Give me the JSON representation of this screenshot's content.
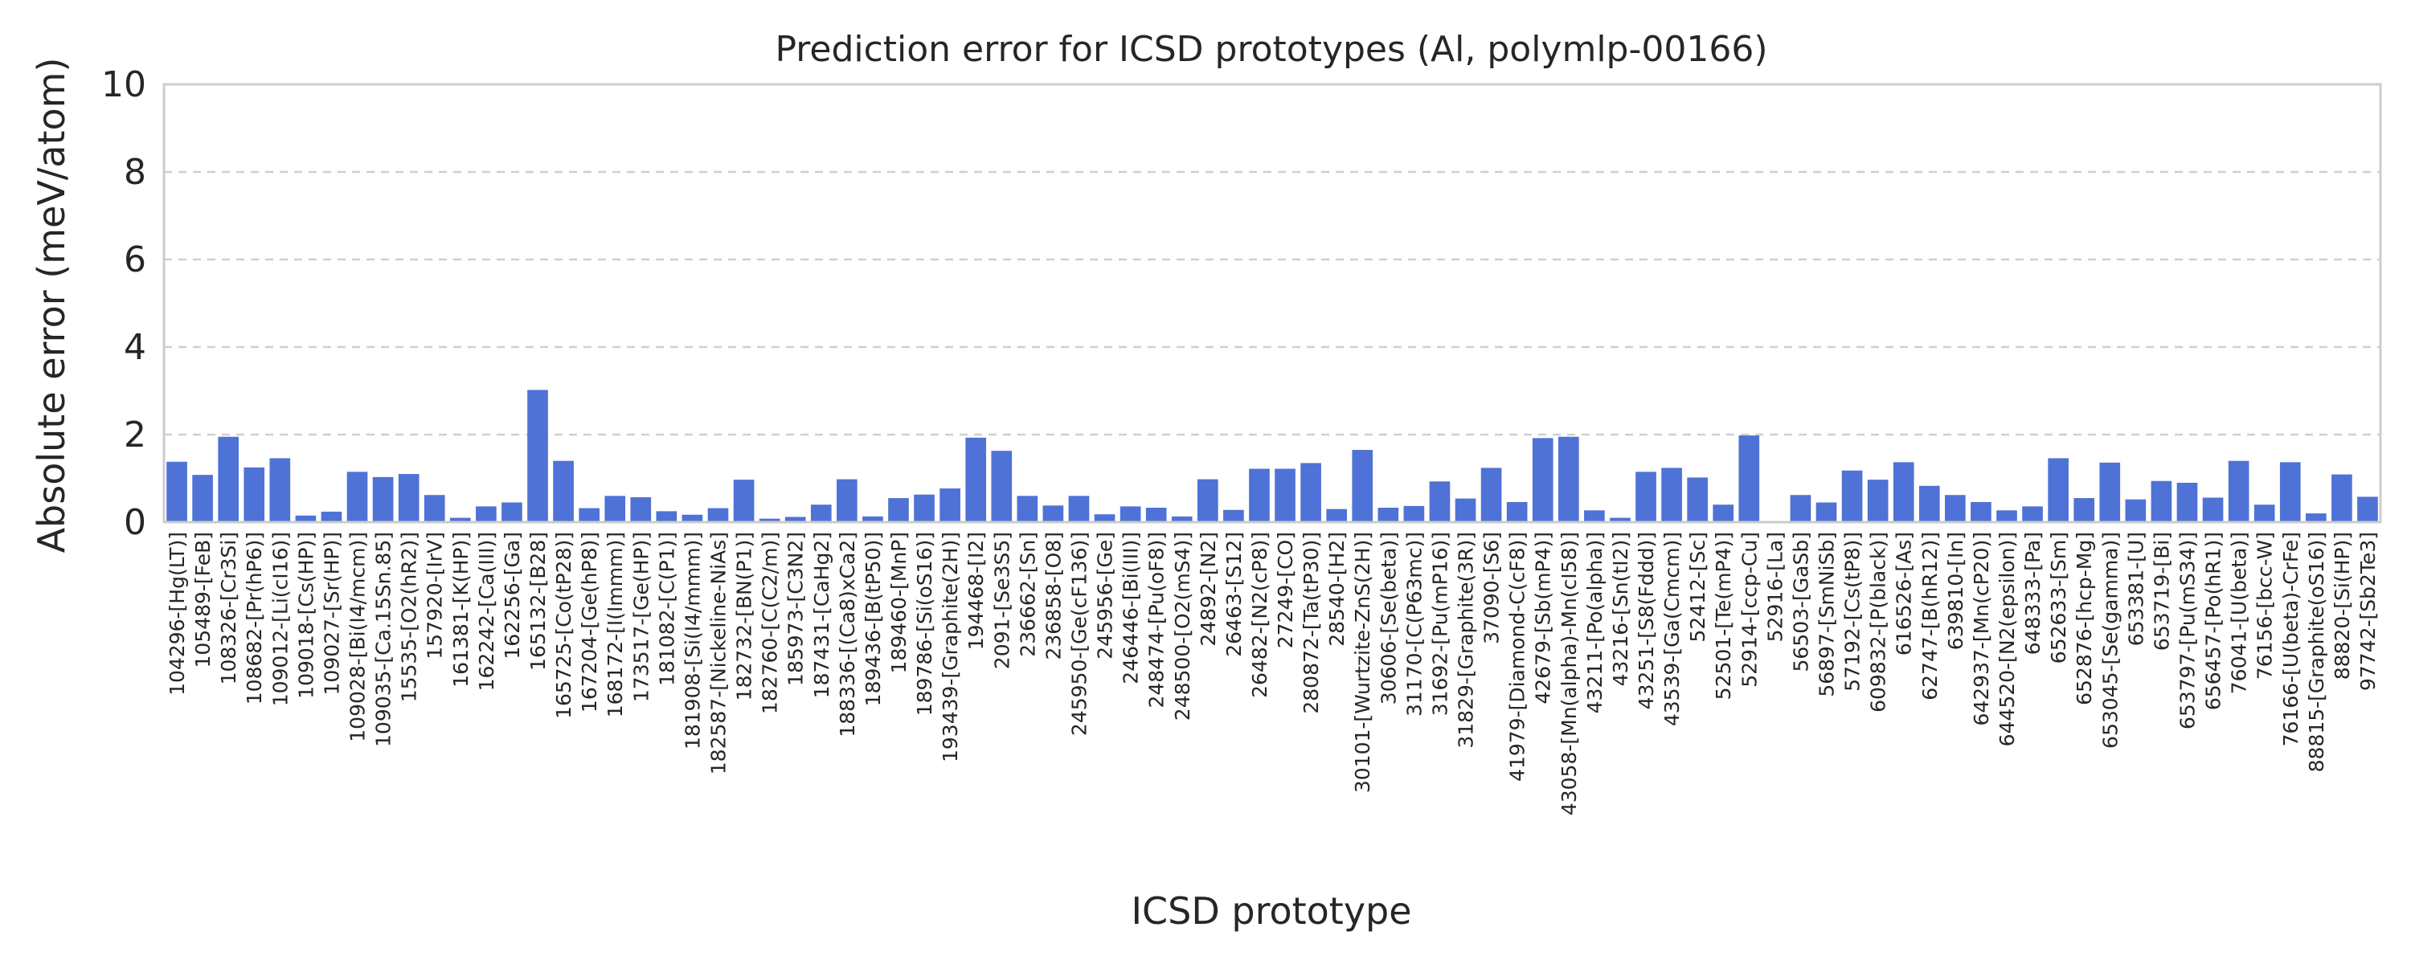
{
  "chart_data": {
    "type": "bar",
    "title": "Prediction error for ICSD prototypes (Al, polymlp-00166)",
    "xlabel": "ICSD prototype",
    "ylabel": "Absolute error (meV/atom)",
    "ylim": [
      0,
      10
    ],
    "yticks": [
      0,
      2,
      4,
      6,
      8,
      10
    ],
    "grid": "horizontal-dashed",
    "colors": {
      "bar": "#4f72d6",
      "grid": "#cfcfcf",
      "frame": "#cccccc"
    },
    "categories": [
      "104296-[Hg(LT)]",
      "105489-[FeB]",
      "108326-[Cr3Si]",
      "108682-[Pr(hP6)]",
      "109012-[Li(cI16)]",
      "109018-[Cs(HP)]",
      "109027-[Sr(HP)]",
      "109028-[Bi(I4/mcm)]",
      "109035-[Ca.15Sn.85]",
      "15535-[O2(hR2)]",
      "157920-[IrV]",
      "161381-[K(HP)]",
      "162242-[Ca(III)]",
      "162256-[Ga]",
      "165132-[B28]",
      "165725-[Co(tP28)]",
      "167204-[Ge(hP8)]",
      "168172-[I(Immm)]",
      "173517-[Ge(HP)]",
      "181082-[C(P1)]",
      "181908-[Si(I4/mmm)]",
      "182587-[Nickeline-NiAs]",
      "182732-[BN(P1)]",
      "182760-[C(C2/m)]",
      "185973-[C3N2]",
      "187431-[CaHg2]",
      "188336-[(Ca8)xCa2]",
      "189436-[B(tP50)]",
      "189460-[MnP]",
      "189786-[Si(oS16)]",
      "193439-[Graphite(2H)]",
      "194468-[I2]",
      "2091-[Se3S5]",
      "236662-[Sn]",
      "236858-[O8]",
      "245950-[Ge(cF136)]",
      "245956-[Ge]",
      "246446-[Bi(III)]",
      "248474-[Pu(oF8)]",
      "248500-[O2(mS4)]",
      "24892-[N2]",
      "26463-[S12]",
      "26482-[N2(cP8)]",
      "27249-[CO]",
      "280872-[Ta(tP30)]",
      "28540-[H2]",
      "30101-[Wurtzite-ZnS(2H)]",
      "30606-[Se(beta)]",
      "31170-[C(P63mc)]",
      "31692-[Pu(mP16)]",
      "31829-[Graphite(3R)]",
      "37090-[S6]",
      "41979-[Diamond-C(cF8)]",
      "42679-[Sb(mP4)]",
      "43058-[Mn(alpha)-Mn(cI58)]",
      "43211-[Po(alpha)]",
      "43216-[Sn(tI2)]",
      "43251-[S8(Fddd)]",
      "43539-[Ga(Cmcm)]",
      "52412-[Sc]",
      "52501-[Te(mP4)]",
      "52914-[ccp-Cu]",
      "52916-[La]",
      "56503-[GaSb]",
      "56897-[SmNiSb]",
      "57192-[Cs(tP8)]",
      "609832-[P(black)]",
      "616526-[As]",
      "62747-[B(hR12)]",
      "639810-[In]",
      "642937-[Mn(cP20)]",
      "644520-[N2(epsilon)]",
      "648333-[Pa]",
      "652633-[Sm]",
      "652876-[hcp-Mg]",
      "653045-[Se(gamma)]",
      "653381-[U]",
      "653719-[Bi]",
      "653797-[Pu(mS34)]",
      "656457-[Po(hR1)]",
      "76041-[U(beta)]",
      "76156-[bcc-W]",
      "76166-[U(beta)-CrFe]",
      "88815-[Graphite(oS16)]",
      "88820-[Si(HP)]",
      "97742-[Sb2Te3]"
    ],
    "values": [
      1.38,
      1.08,
      1.95,
      1.25,
      1.46,
      0.15,
      0.24,
      1.15,
      1.03,
      1.1,
      0.62,
      0.1,
      0.36,
      0.45,
      3.02,
      1.4,
      0.32,
      0.6,
      0.57,
      0.25,
      0.17,
      0.32,
      0.97,
      0.08,
      0.12,
      0.4,
      0.98,
      0.13,
      0.55,
      0.63,
      0.77,
      1.93,
      1.63,
      0.6,
      0.38,
      0.6,
      0.18,
      0.36,
      0.33,
      0.13,
      0.98,
      0.28,
      1.22,
      1.22,
      1.35,
      0.3,
      1.65,
      0.33,
      0.37,
      0.93,
      0.54,
      1.24,
      0.46,
      1.92,
      1.95,
      0.27,
      0.1,
      1.15,
      1.24,
      1.02,
      0.4,
      1.98,
      0.02,
      0.62,
      0.45,
      1.18,
      0.97,
      1.37,
      0.83,
      0.62,
      0.46,
      0.27,
      0.36,
      1.46,
      0.55,
      1.36,
      0.52,
      0.94,
      0.9,
      0.56,
      1.4,
      0.4,
      1.37,
      0.2,
      1.09,
      0.58
    ]
  }
}
